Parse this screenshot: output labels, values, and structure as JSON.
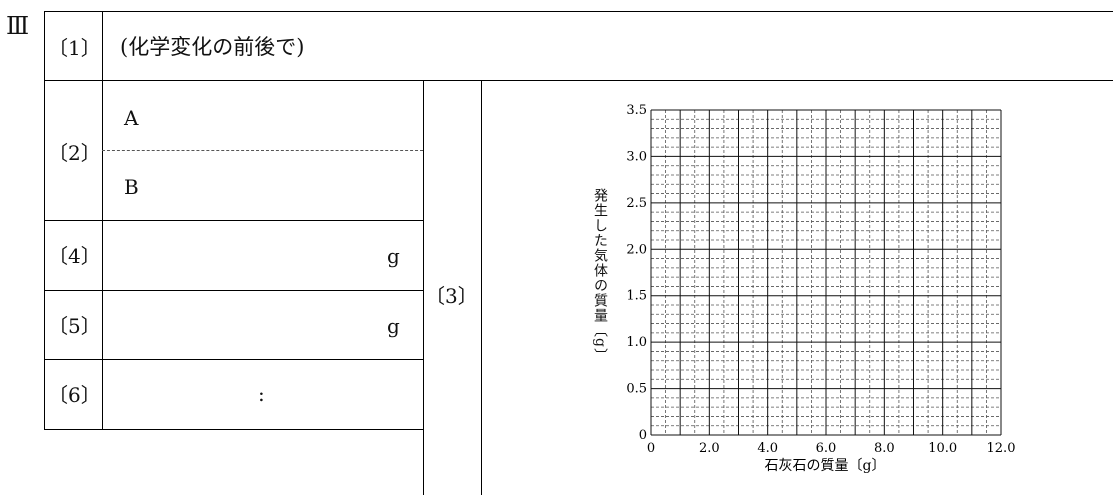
{
  "section_label": "Ⅲ",
  "rows": {
    "q1": {
      "number": "〔1〕",
      "text": "(化学変化の前後で)"
    },
    "q2": {
      "number": "〔2〕",
      "sub_a": "A",
      "sub_b": "B"
    },
    "q3": {
      "number": "〔3〕"
    },
    "q4": {
      "number": "〔4〕",
      "unit": "g"
    },
    "q5": {
      "number": "〔5〕",
      "unit": "g"
    },
    "q6": {
      "number": "〔6〕",
      "separator": ":"
    }
  },
  "chart_data": {
    "type": "line",
    "title": "",
    "xlabel": "石灰石の質量〔g〕",
    "ylabel": "発生した気体の質量〔g〕",
    "xlim": [
      0,
      12
    ],
    "ylim": [
      0,
      3.5
    ],
    "x_ticks": [
      "0",
      "2.0",
      "4.0",
      "6.0",
      "8.0",
      "10.0",
      "12.0"
    ],
    "y_ticks": [
      "0",
      "0.5",
      "1.0",
      "1.5",
      "2.0",
      "2.5",
      "3.0",
      "3.5"
    ],
    "grid": true,
    "series": []
  }
}
